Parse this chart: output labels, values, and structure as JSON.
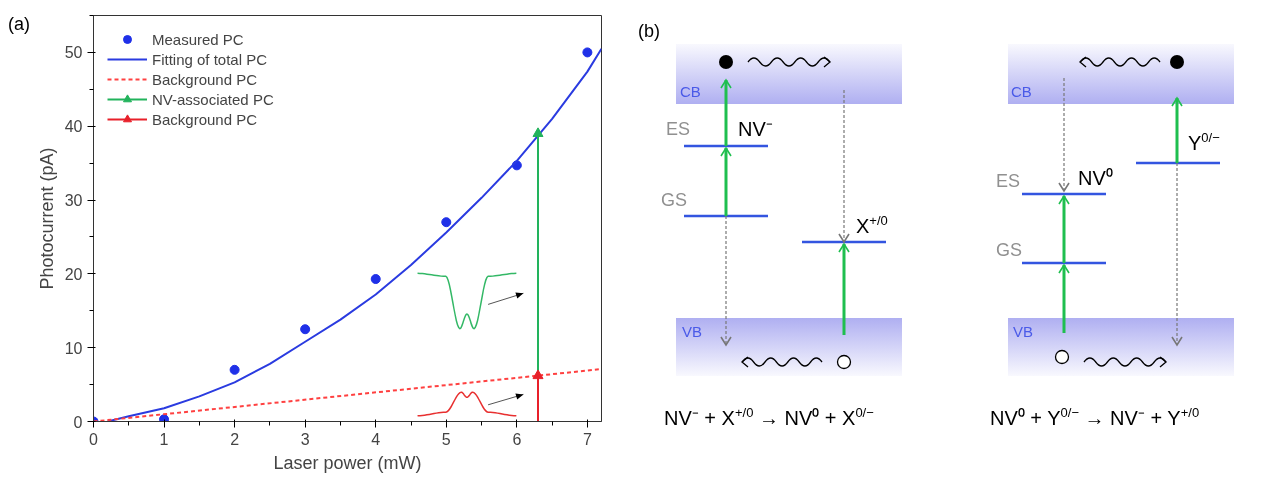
{
  "chart_data": [
    {
      "type": "scatter",
      "xlabel": "Laser power (mW)",
      "ylabel": "Photocurrent (pA)",
      "xlim": [
        0,
        7.2
      ],
      "ylim": [
        0,
        55
      ],
      "xticks": [
        0,
        1,
        2,
        3,
        4,
        5,
        6,
        7
      ],
      "yticks": [
        0,
        10,
        20,
        30,
        40,
        50
      ],
      "legend": "top left",
      "annotations": [
        "(a)"
      ],
      "series": [
        {
          "name": "Measured PC",
          "type": "scatter",
          "marker": "circle",
          "color": "#1f30e8",
          "x": [
            0,
            1,
            2,
            3,
            4,
            5,
            6,
            7
          ],
          "values": [
            0,
            0.3,
            7,
            12.5,
            19.3,
            27,
            34.7,
            50
          ]
        },
        {
          "name": "Fitting of total PC",
          "type": "line",
          "color": "#2a3be0",
          "x": [
            0.2,
            0.5,
            1,
            1.5,
            2,
            2.5,
            3,
            3.5,
            4,
            4.5,
            5,
            5.5,
            6,
            6.5,
            7,
            7.2
          ],
          "values": [
            0,
            0.7,
            1.8,
            3.4,
            5.3,
            7.8,
            10.8,
            13.8,
            17.2,
            21.2,
            25.6,
            30.3,
            35.3,
            41,
            47.4,
            50.5
          ]
        },
        {
          "name": "Background PC",
          "type": "line",
          "line_style": "dashed",
          "color": "#ff4040",
          "x": [
            0,
            7.2
          ],
          "values": [
            0,
            7.1
          ]
        },
        {
          "name": "NV-associated PC",
          "type": "line",
          "marker": "triangle",
          "color": "#22b35c",
          "x": [
            6.3,
            6.3
          ],
          "values": [
            6.2,
            39
          ]
        },
        {
          "name": "Background PC",
          "type": "line",
          "marker": "triangle",
          "color": "#e8202a",
          "x": [
            6.3,
            6.3
          ],
          "values": [
            0,
            6.2
          ]
        }
      ]
    },
    {
      "type": "other",
      "annotations": [
        "(b)",
        "CB",
        "VB",
        "ES",
        "GS",
        "NV⁻",
        "X$^{+/0}$",
        "CB",
        "VB",
        "ES",
        "GS",
        "NV⁰",
        "Y$^{0/−}$",
        "NV⁻ + X$^{+/0}$ → NV⁰ + X$^{0/−}$",
        "NV⁰ + Y$^{0/−}$ → NV⁻ + Y$^{+/0}$"
      ]
    }
  ]
}
